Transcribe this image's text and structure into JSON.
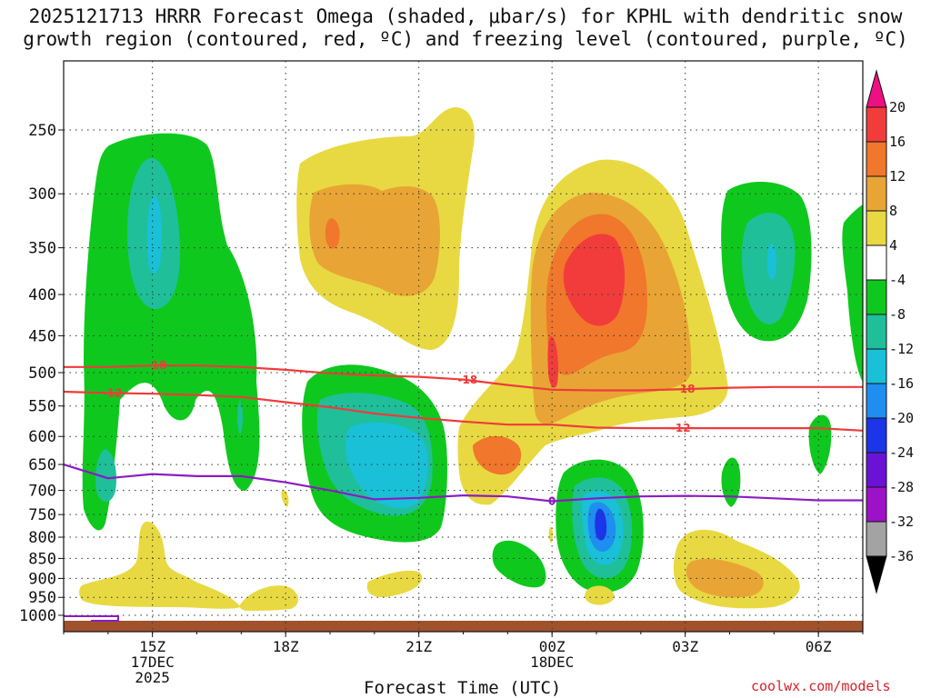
{
  "chart_data": {
    "type": "heatmap",
    "title_line1": "2025121713 HRRR Forecast Omega (shaded, μbar/s) for KPHL with dendritic snow",
    "title_line2": "growth region (contoured, red, ºC) and freezing level (contoured, purple, ºC)",
    "xlabel": "Forecast Time (UTC)",
    "credit": "coolwx.com/models",
    "x_ticks": [
      {
        "label": "15Z",
        "sub1": "17DEC",
        "sub2": "2025",
        "hour": 15
      },
      {
        "label": "18Z",
        "sub1": "",
        "sub2": "",
        "hour": 18
      },
      {
        "label": "21Z",
        "sub1": "",
        "sub2": "",
        "hour": 21
      },
      {
        "label": "00Z",
        "sub1": "18DEC",
        "sub2": "",
        "hour": 24
      },
      {
        "label": "03Z",
        "sub1": "",
        "sub2": "",
        "hour": 27
      },
      {
        "label": "06Z",
        "sub1": "",
        "sub2": "",
        "hour": 30
      }
    ],
    "xlim_hours": [
      13.0,
      31.0
    ],
    "y_ticks": [
      "250",
      "300",
      "350",
      "400",
      "450",
      "500",
      "550",
      "600",
      "650",
      "700",
      "750",
      "800",
      "850",
      "900",
      "950",
      "1000"
    ],
    "y_values_hpa": [
      250,
      300,
      350,
      400,
      450,
      500,
      550,
      600,
      650,
      700,
      750,
      800,
      850,
      900,
      950,
      1000
    ],
    "colorbar": {
      "labels": [
        "20",
        "16",
        "12",
        "8",
        "4",
        "-4",
        "-8",
        "-12",
        "-16",
        "-20",
        "-24",
        "-28",
        "-32",
        "-36"
      ],
      "colors": [
        "#ec1083",
        "#f23c3c",
        "#f0772b",
        "#e8a535",
        "#e8d942",
        "#ffffff",
        "#0fc81e",
        "#1fbf9a",
        "#19c0d8",
        "#1e8ef0",
        "#1c35e8",
        "#6a12d6",
        "#9d12c6",
        "#a3a3a3",
        "#000000"
      ]
    },
    "contours": {
      "dgz_minus18": {
        "label": "-18",
        "color": "#ef3b3b",
        "points": [
          [
            13,
            492
          ],
          [
            14,
            492
          ],
          [
            15,
            490
          ],
          [
            16,
            490
          ],
          [
            17,
            492
          ],
          [
            18,
            496
          ],
          [
            19,
            501
          ],
          [
            20,
            504
          ],
          [
            21,
            506
          ],
          [
            22,
            510
          ],
          [
            23,
            518
          ],
          [
            24,
            525
          ],
          [
            25,
            526
          ],
          [
            26,
            526
          ],
          [
            27,
            524
          ],
          [
            28,
            522
          ],
          [
            29,
            521
          ],
          [
            30,
            521
          ],
          [
            31,
            521
          ]
        ],
        "label_hours": [
          15.1,
          22.1,
          27.0
        ]
      },
      "dgz_minus12": {
        "label": "-12",
        "color": "#ef3b3b",
        "points": [
          [
            13,
            528
          ],
          [
            14,
            530
          ],
          [
            15,
            531
          ],
          [
            16,
            533
          ],
          [
            17,
            536
          ],
          [
            18,
            544
          ],
          [
            19,
            552
          ],
          [
            20,
            562
          ],
          [
            21,
            569
          ],
          [
            22,
            575
          ],
          [
            23,
            580
          ],
          [
            24,
            580
          ],
          [
            25,
            585
          ],
          [
            26,
            586
          ],
          [
            27,
            586
          ],
          [
            28,
            586
          ],
          [
            29,
            586
          ],
          [
            30,
            586
          ],
          [
            31,
            590
          ]
        ],
        "label_hours": [
          14.1,
          26.9
        ]
      },
      "freezing_0": {
        "label": "0",
        "color": "#8a1cc2",
        "points": [
          [
            13,
            650
          ],
          [
            14,
            676
          ],
          [
            15,
            668
          ],
          [
            16,
            672
          ],
          [
            17,
            672
          ],
          [
            18,
            684
          ],
          [
            19,
            700
          ],
          [
            20,
            718
          ],
          [
            21,
            715
          ],
          [
            22,
            710
          ],
          [
            23,
            712
          ],
          [
            24,
            722
          ],
          [
            25,
            716
          ],
          [
            26,
            712
          ],
          [
            27,
            711
          ],
          [
            28,
            712
          ],
          [
            29,
            716
          ],
          [
            30,
            720
          ],
          [
            31,
            720
          ]
        ],
        "label_hours": [
          24.0
        ]
      }
    }
  }
}
